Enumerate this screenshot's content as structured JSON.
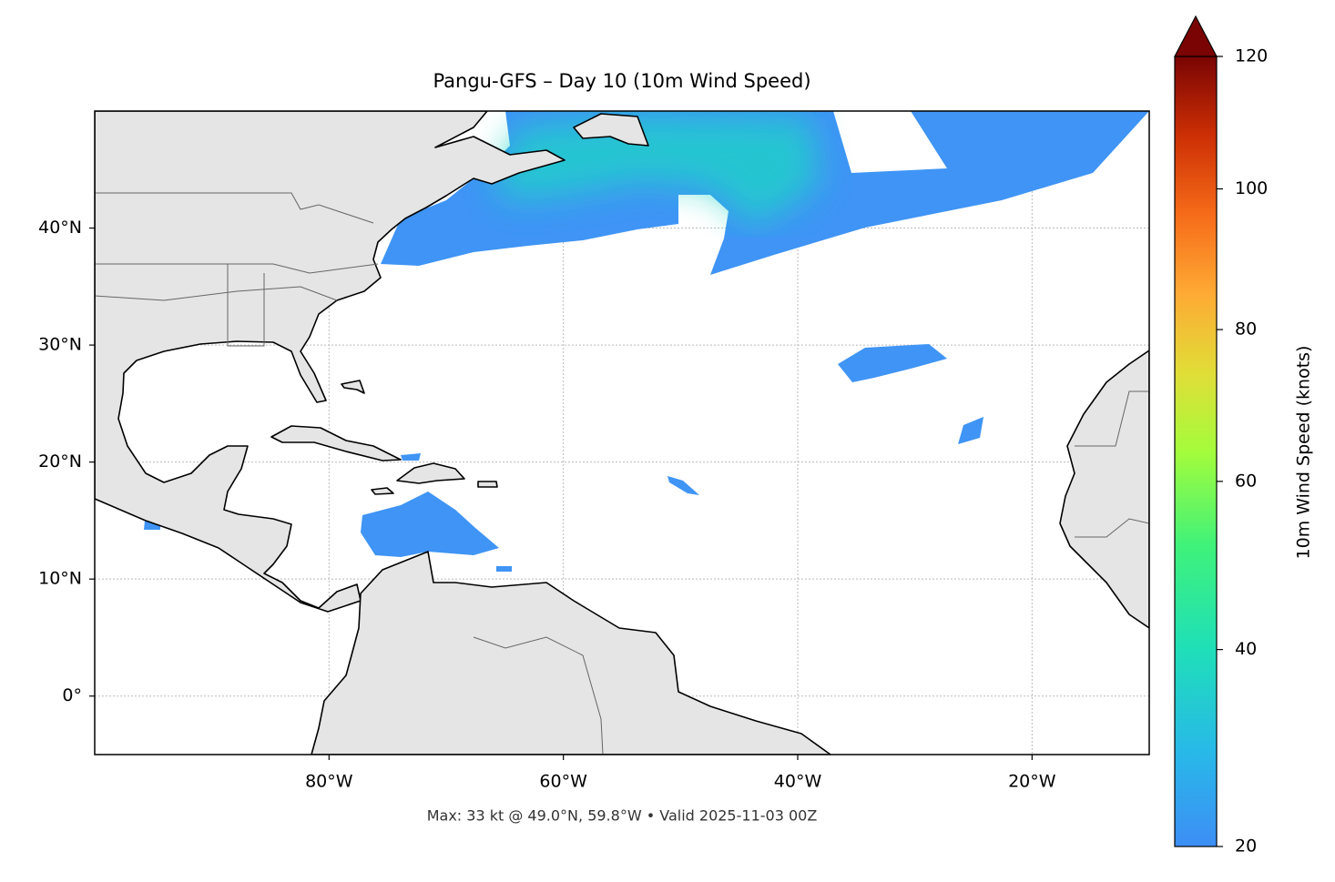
{
  "chart_data": {
    "type": "map",
    "title": "Pangu-GFS – Day 10 (10m Wind Speed)",
    "footer": "Max: 33 kt @ 49.0°N, 59.8°W • Valid 2025-11-03 00Z",
    "xlim": [
      -100,
      -10
    ],
    "ylim": [
      -5,
      50
    ],
    "xticks": [
      {
        "value": -80,
        "label": "80°W"
      },
      {
        "value": -60,
        "label": "60°W"
      },
      {
        "value": -40,
        "label": "40°W"
      },
      {
        "value": -20,
        "label": "20°W"
      }
    ],
    "yticks": [
      {
        "value": 0,
        "label": "0°"
      },
      {
        "value": 10,
        "label": "10°N"
      },
      {
        "value": 20,
        "label": "20°N"
      },
      {
        "value": 30,
        "label": "30°N"
      },
      {
        "value": 40,
        "label": "40°N"
      }
    ],
    "grid": true,
    "colorbar": {
      "label": "10m Wind Speed (knots)",
      "lim": [
        20,
        120
      ],
      "ticks": [
        20,
        40,
        60,
        80,
        100,
        120
      ],
      "norm": "power",
      "gamma": 0.7,
      "extend": "max"
    }
  }
}
